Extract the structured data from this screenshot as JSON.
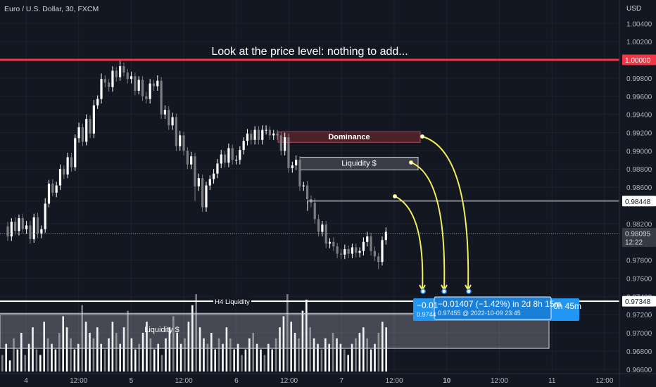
{
  "chart_data": {
    "type": "candlestick",
    "symbol_title": "Euro / U.S. Dollar, 30, FXCM",
    "currency_label": "USD",
    "annotation_text": "Look at the price level: nothing to add...",
    "y_axis": {
      "min": 0.9656,
      "max": 1.0058,
      "ticks": [
        "1.00400",
        "1.00200",
        "1.00000",
        "0.99800",
        "0.99600",
        "0.99400",
        "0.99200",
        "0.99000",
        "0.98800",
        "0.98600",
        "0.98448",
        "0.98200",
        "0.98095",
        "0.97800",
        "0.97600",
        "0.97400",
        "0.97348",
        "0.97200",
        "0.97000",
        "0.96800",
        "0.96600"
      ],
      "tick_values": [
        1.004,
        1.002,
        1.0,
        0.998,
        0.996,
        0.994,
        0.992,
        0.99,
        0.988,
        0.986,
        0.98448,
        0.982,
        0.98095,
        0.978,
        0.976,
        0.974,
        0.97348,
        0.972,
        0.97,
        0.968,
        0.966
      ]
    },
    "x_axis": {
      "labels": [
        "4",
        "12:00",
        "5",
        "12:00",
        "6",
        "12:00",
        "7",
        "12:00",
        "10",
        "12:00",
        "11",
        "12:00"
      ],
      "label_bold": [
        false,
        false,
        false,
        false,
        false,
        false,
        false,
        false,
        true,
        false,
        false,
        false
      ],
      "label_index": [
        0,
        16,
        32,
        48,
        64,
        80,
        96,
        112,
        128,
        144,
        160,
        176
      ]
    },
    "price_labels": {
      "resistance": {
        "value": 1.0,
        "text": "1.00000",
        "color": "#f23645"
      },
      "level_98448": {
        "value": 0.98448,
        "text": "0.98448"
      },
      "current": {
        "value": 0.98095,
        "text": "0.98095",
        "countdown": "12:22"
      },
      "h4": {
        "value": 0.97348,
        "text": "0.97348"
      }
    },
    "zones": {
      "dominance": {
        "label": "Dominance",
        "top": 0.9921,
        "bottom": 0.9914
      },
      "liquidity_usd": {
        "label": "Liquidity $",
        "top": 0.9893,
        "bottom": 0.9879
      },
      "h4_liquidity": {
        "label": "H4 Liquidity",
        "value": 0.97348
      },
      "lower_liquidity": {
        "label": "Liquidity $",
        "top": 0.972,
        "bottom": 0.9683
      }
    },
    "measurement": {
      "text_main": "−0.01407 (−1.42%) in 2d 8h 15m",
      "text_sub": "0.97455 @ 2022-10-09  23:45",
      "text_left_partial": "−0.01",
      "text_left_sub": "0.9744",
      "text_right_partial": "0h 45m"
    },
    "candles": {
      "closes": [
        0.9806,
        0.9822,
        0.9812,
        0.9826,
        0.9814,
        0.9818,
        0.9803,
        0.9827,
        0.9809,
        0.9814,
        0.9842,
        0.9864,
        0.9854,
        0.9862,
        0.988,
        0.9874,
        0.9893,
        0.9882,
        0.9914,
        0.9926,
        0.991,
        0.9935,
        0.9919,
        0.995,
        0.9957,
        0.9979,
        0.9975,
        0.997,
        0.9988,
        0.9981,
        0.9993,
        0.9986,
        0.9979,
        0.9982,
        0.9966,
        0.9978,
        0.996,
        0.9957,
        0.9974,
        0.9971,
        0.9977,
        0.994,
        0.9945,
        0.9928,
        0.9937,
        0.9905,
        0.9917,
        0.99,
        0.9885,
        0.9894,
        0.9861,
        0.987,
        0.9838,
        0.9862,
        0.9869,
        0.9875,
        0.9886,
        0.9896,
        0.9887,
        0.9903,
        0.989,
        0.989,
        0.9901,
        0.9911,
        0.9919,
        0.9912,
        0.9923,
        0.9912,
        0.9923,
        0.9923,
        0.9917,
        0.9919,
        0.9917,
        0.99,
        0.9915,
        0.9881,
        0.9884,
        0.989,
        0.9861,
        0.9862,
        0.9847,
        0.9843,
        0.9825,
        0.9811,
        0.9819,
        0.9798,
        0.98,
        0.9795,
        0.9787,
        0.9786,
        0.9792,
        0.9787,
        0.9794,
        0.9788,
        0.979,
        0.98,
        0.9806,
        0.979,
        0.9784,
        0.9778,
        0.9802,
        0.9811
      ],
      "opens": [
        0.9817,
        0.9806,
        0.9822,
        0.9812,
        0.9826,
        0.9814,
        0.9818,
        0.9803,
        0.9827,
        0.9809,
        0.9814,
        0.9842,
        0.9864,
        0.9854,
        0.9862,
        0.988,
        0.9874,
        0.9893,
        0.9882,
        0.9914,
        0.9926,
        0.991,
        0.9935,
        0.9919,
        0.995,
        0.9957,
        0.9979,
        0.9975,
        0.997,
        0.9988,
        0.9981,
        0.9993,
        0.9986,
        0.9979,
        0.9982,
        0.9966,
        0.9978,
        0.996,
        0.9957,
        0.9974,
        0.9971,
        0.9977,
        0.994,
        0.9945,
        0.9928,
        0.9937,
        0.9905,
        0.9917,
        0.99,
        0.9885,
        0.9894,
        0.9861,
        0.987,
        0.9838,
        0.9862,
        0.9869,
        0.9875,
        0.9886,
        0.9896,
        0.9887,
        0.9903,
        0.989,
        0.989,
        0.9901,
        0.9911,
        0.9919,
        0.9912,
        0.9923,
        0.9912,
        0.9923,
        0.9923,
        0.9917,
        0.9919,
        0.9917,
        0.99,
        0.9915,
        0.9881,
        0.9884,
        0.989,
        0.9861,
        0.9862,
        0.9847,
        0.9843,
        0.9825,
        0.9811,
        0.9819,
        0.9798,
        0.98,
        0.9795,
        0.9787,
        0.9786,
        0.9792,
        0.9787,
        0.9794,
        0.9788,
        0.979,
        0.98,
        0.9806,
        0.979,
        0.9784,
        0.9778,
        0.9802
      ],
      "highs": [
        0.9822,
        0.9826,
        0.9827,
        0.983,
        0.9831,
        0.9823,
        0.9823,
        0.9831,
        0.9832,
        0.9818,
        0.9848,
        0.9868,
        0.9869,
        0.9866,
        0.9885,
        0.9884,
        0.9898,
        0.9898,
        0.9918,
        0.9931,
        0.993,
        0.994,
        0.9939,
        0.9956,
        0.9961,
        0.9985,
        0.9983,
        0.9979,
        0.9993,
        0.9992,
        1.0,
        0.9997,
        0.999,
        0.9987,
        0.9986,
        0.9982,
        0.9982,
        0.9965,
        0.9979,
        0.9978,
        0.9983,
        0.9981,
        0.995,
        0.9949,
        0.9942,
        0.9941,
        0.9922,
        0.9921,
        0.9904,
        0.9899,
        0.9898,
        0.9875,
        0.9874,
        0.9866,
        0.9873,
        0.988,
        0.9891,
        0.9901,
        0.99,
        0.9908,
        0.9907,
        0.9895,
        0.9905,
        0.9915,
        0.9924,
        0.9923,
        0.9927,
        0.9927,
        0.9928,
        0.9928,
        0.9927,
        0.9923,
        0.9923,
        0.9921,
        0.992,
        0.9919,
        0.9888,
        0.9895,
        0.9894,
        0.9866,
        0.9867,
        0.9851,
        0.9848,
        0.983,
        0.9823,
        0.9823,
        0.9804,
        0.9805,
        0.9799,
        0.9792,
        0.9797,
        0.9796,
        0.9798,
        0.9798,
        0.9794,
        0.9805,
        0.9811,
        0.981,
        0.9795,
        0.9788,
        0.9806,
        0.9816
      ],
      "lows": [
        0.9801,
        0.9801,
        0.9808,
        0.9807,
        0.981,
        0.9809,
        0.9798,
        0.9799,
        0.9804,
        0.9804,
        0.981,
        0.9838,
        0.985,
        0.9849,
        0.9857,
        0.9869,
        0.987,
        0.9877,
        0.9878,
        0.9909,
        0.9905,
        0.9906,
        0.9914,
        0.9914,
        0.9946,
        0.9952,
        0.997,
        0.9965,
        0.9965,
        0.9976,
        0.9977,
        0.9982,
        0.9974,
        0.9974,
        0.9961,
        0.9962,
        0.9955,
        0.9952,
        0.9952,
        0.9966,
        0.9966,
        0.9935,
        0.9935,
        0.9923,
        0.9923,
        0.99,
        0.99,
        0.9895,
        0.988,
        0.988,
        0.9845,
        0.9856,
        0.9833,
        0.9833,
        0.9857,
        0.9864,
        0.987,
        0.9881,
        0.9882,
        0.9882,
        0.9885,
        0.9885,
        0.9885,
        0.9896,
        0.9906,
        0.9907,
        0.9907,
        0.9907,
        0.9907,
        0.9918,
        0.9912,
        0.9912,
        0.9912,
        0.9895,
        0.9895,
        0.9876,
        0.9876,
        0.9879,
        0.9856,
        0.9856,
        0.9842,
        0.9838,
        0.982,
        0.9806,
        0.9806,
        0.9793,
        0.9793,
        0.979,
        0.9782,
        0.9781,
        0.9781,
        0.9782,
        0.9782,
        0.9783,
        0.9783,
        0.9785,
        0.9795,
        0.9785,
        0.9779,
        0.977,
        0.9774,
        0.9797
      ]
    },
    "volume": {
      "values": [
        3,
        5,
        2,
        6,
        4,
        7,
        3,
        5,
        8,
        4,
        3,
        9,
        6,
        5,
        4,
        7,
        10,
        8,
        6,
        4,
        5,
        12,
        9,
        7,
        6,
        8,
        5,
        4,
        6,
        9,
        7,
        5,
        8,
        11,
        6,
        4,
        5,
        7,
        9,
        6,
        4,
        5,
        3,
        6,
        8,
        10,
        7,
        5,
        6,
        9,
        12,
        14,
        8,
        6,
        5,
        7,
        4,
        6,
        5,
        8,
        6,
        4,
        5,
        3,
        4,
        6,
        7,
        5,
        4,
        3,
        5,
        4,
        6,
        8,
        10,
        14,
        9,
        7,
        6,
        11,
        13,
        8,
        6,
        5,
        4,
        6,
        5,
        7,
        6,
        5,
        4,
        3,
        5,
        6,
        7,
        8,
        6,
        4,
        5,
        7,
        9,
        8
      ],
      "max": 14
    },
    "colors": {
      "background": "#131722",
      "candle_up": "#ffffff",
      "candle_down": "#7c7c80",
      "resistance": "#f23645",
      "arrow": "#f4f05b",
      "measurement": "#2196f3",
      "dominance_zone": "#4a2227"
    }
  }
}
